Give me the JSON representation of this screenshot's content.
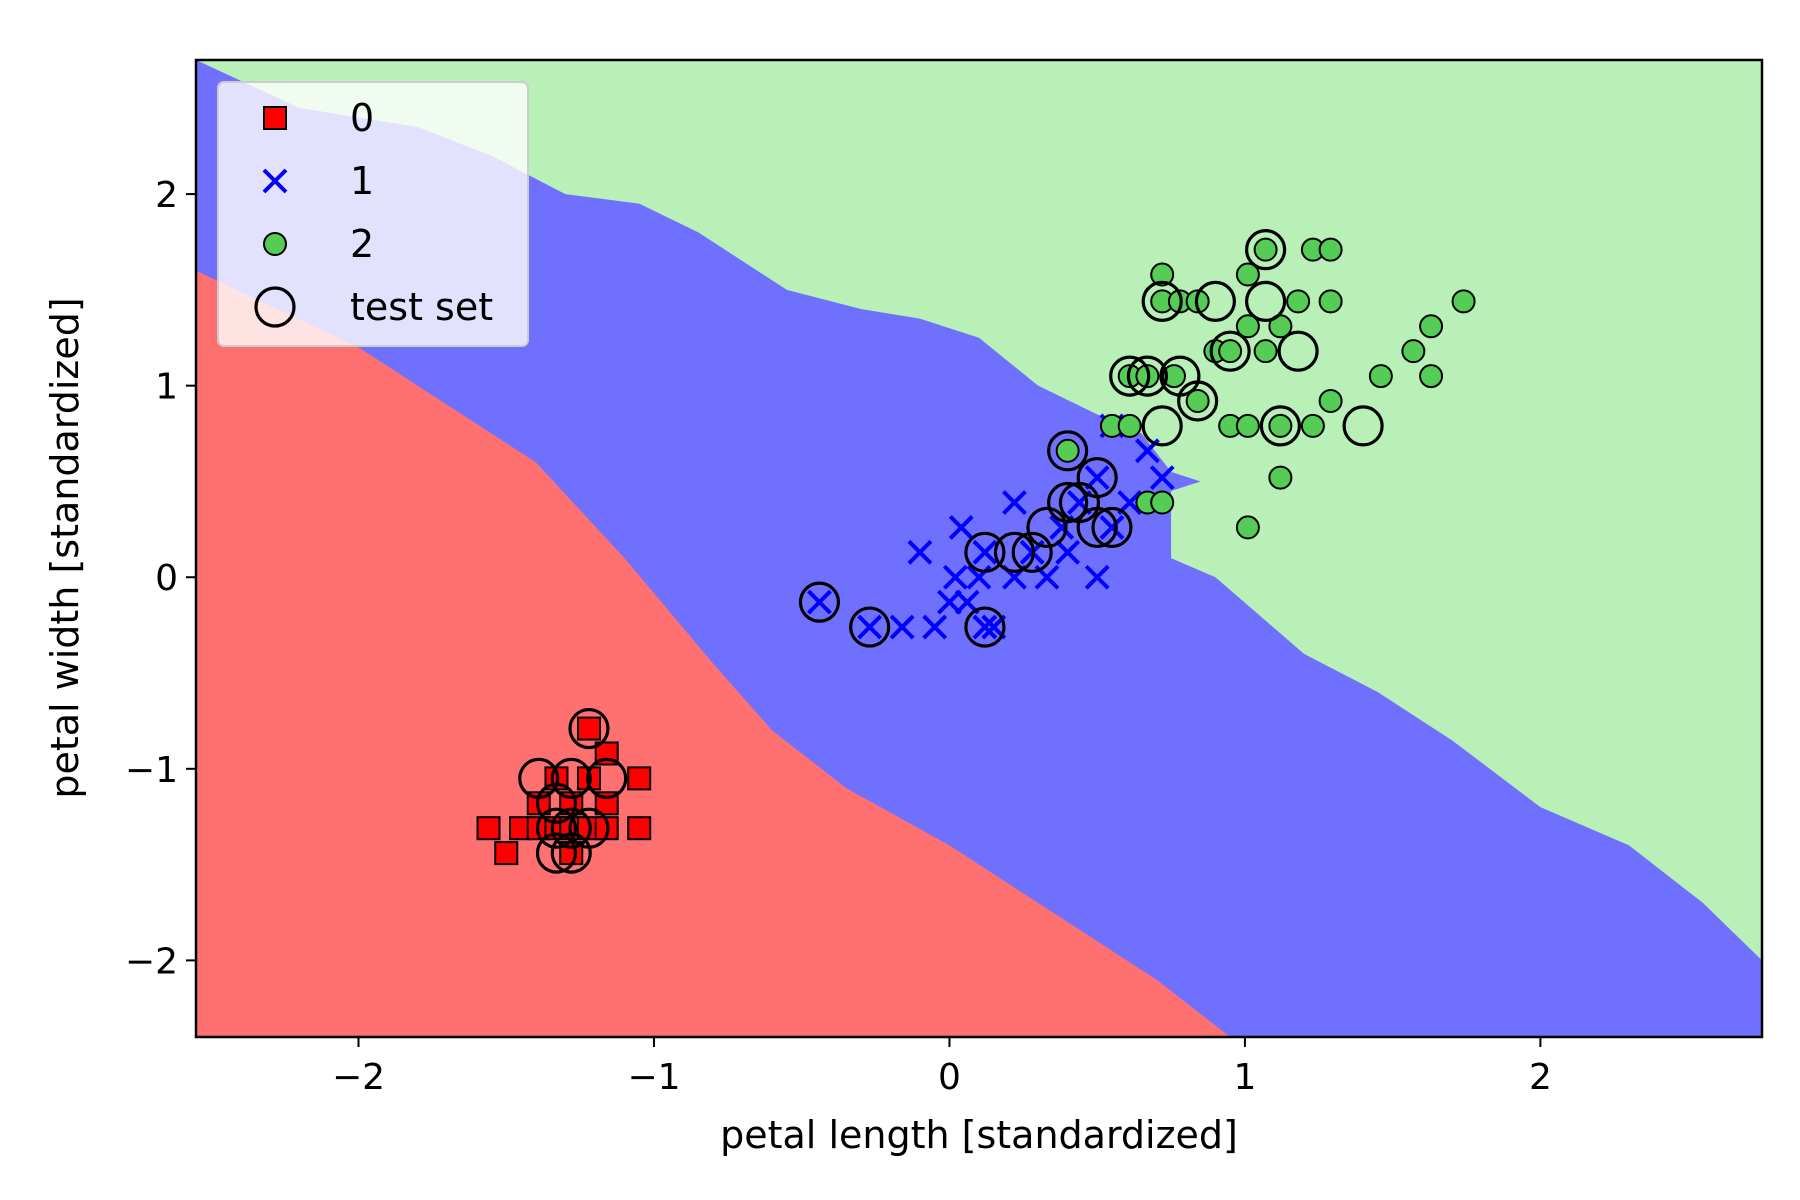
{
  "chart_data": {
    "type": "scatter",
    "title": "",
    "xlabel": "petal length [standardized]",
    "ylabel": "petal width [standardized]",
    "xlim": [
      -2.55,
      2.75
    ],
    "ylim": [
      -2.4,
      2.7
    ],
    "xticks": [
      -2,
      -1,
      0,
      1,
      2
    ],
    "yticks": [
      -2,
      -1,
      0,
      1,
      2
    ],
    "xtick_labels": [
      "−2",
      "−1",
      "0",
      "1",
      "2"
    ],
    "ytick_labels": [
      "−2",
      "−1",
      "0",
      "1",
      "2"
    ],
    "grid": false,
    "legend_position": "upper-left",
    "regions": [
      {
        "class": "0",
        "color": "#ff7070",
        "boundary_to": "1",
        "boundary": [
          [
            -2.55,
            1.6
          ],
          [
            -2.0,
            1.2
          ],
          [
            -1.7,
            0.9
          ],
          [
            -1.4,
            0.6
          ],
          [
            -1.1,
            0.1
          ],
          [
            -0.8,
            -0.45
          ],
          [
            -0.6,
            -0.8
          ],
          [
            -0.35,
            -1.1
          ],
          [
            0.0,
            -1.4
          ],
          [
            0.4,
            -1.8
          ],
          [
            0.7,
            -2.1
          ],
          [
            0.95,
            -2.4
          ]
        ]
      },
      {
        "class": "1",
        "color": "#7070ff",
        "boundary_to": "2",
        "boundary": [
          [
            -2.55,
            2.7
          ],
          [
            -2.2,
            2.45
          ],
          [
            -1.8,
            2.35
          ],
          [
            -1.55,
            2.2
          ],
          [
            -1.3,
            2.0
          ],
          [
            -1.05,
            1.95
          ],
          [
            -0.85,
            1.8
          ],
          [
            -0.55,
            1.5
          ],
          [
            -0.3,
            1.4
          ],
          [
            -0.1,
            1.35
          ],
          [
            0.1,
            1.25
          ],
          [
            0.3,
            1.0
          ],
          [
            0.5,
            0.85
          ],
          [
            0.65,
            0.75
          ],
          [
            0.75,
            0.55
          ],
          [
            0.85,
            0.5
          ],
          [
            0.75,
            0.45
          ],
          [
            0.75,
            0.25
          ],
          [
            0.75,
            0.1
          ],
          [
            0.9,
            0.0
          ],
          [
            1.05,
            -0.2
          ],
          [
            1.2,
            -0.4
          ],
          [
            1.45,
            -0.6
          ],
          [
            1.7,
            -0.85
          ],
          [
            2.0,
            -1.2
          ],
          [
            2.3,
            -1.4
          ],
          [
            2.55,
            -1.7
          ],
          [
            2.75,
            -2.0
          ]
        ]
      },
      {
        "class": "2",
        "color": "#b8f0b8"
      }
    ],
    "series": [
      {
        "name": "0",
        "marker": "square",
        "color": "#ff0000",
        "points": [
          [
            -1.56,
            -1.31
          ],
          [
            -1.5,
            -1.44
          ],
          [
            -1.45,
            -1.31
          ],
          [
            -1.39,
            -1.31
          ],
          [
            -1.39,
            -1.18
          ],
          [
            -1.33,
            -1.05
          ],
          [
            -1.33,
            -1.31
          ],
          [
            -1.28,
            -1.18
          ],
          [
            -1.28,
            -1.31
          ],
          [
            -1.22,
            -1.05
          ],
          [
            -1.22,
            -1.31
          ],
          [
            -1.22,
            -0.79
          ],
          [
            -1.16,
            -0.92
          ],
          [
            -1.16,
            -1.18
          ],
          [
            -1.16,
            -1.31
          ],
          [
            -1.05,
            -1.05
          ],
          [
            -1.05,
            -1.31
          ],
          [
            -1.28,
            -1.44
          ]
        ]
      },
      {
        "name": "1",
        "marker": "x",
        "color": "#0000ff",
        "points": [
          [
            -0.44,
            -0.13
          ],
          [
            -0.27,
            -0.26
          ],
          [
            -0.16,
            -0.26
          ],
          [
            -0.1,
            0.13
          ],
          [
            -0.05,
            -0.26
          ],
          [
            0.0,
            -0.13
          ],
          [
            0.02,
            0.0
          ],
          [
            0.04,
            0.26
          ],
          [
            0.06,
            -0.13
          ],
          [
            0.1,
            0.0
          ],
          [
            0.12,
            0.13
          ],
          [
            0.15,
            -0.26
          ],
          [
            0.22,
            0.0
          ],
          [
            0.22,
            0.39
          ],
          [
            0.28,
            0.13
          ],
          [
            0.33,
            0.0
          ],
          [
            0.38,
            0.26
          ],
          [
            0.4,
            0.13
          ],
          [
            0.44,
            0.39
          ],
          [
            0.5,
            0.0
          ],
          [
            0.55,
            0.26
          ],
          [
            0.55,
            0.79
          ],
          [
            0.61,
            0.39
          ],
          [
            0.67,
            0.66
          ],
          [
            0.72,
            0.52
          ],
          [
            0.12,
            -0.26
          ],
          [
            0.5,
            0.52
          ]
        ]
      },
      {
        "name": "2",
        "marker": "circle",
        "color": "#55cc55",
        "points": [
          [
            0.4,
            0.66
          ],
          [
            0.55,
            0.79
          ],
          [
            0.61,
            1.05
          ],
          [
            0.61,
            0.79
          ],
          [
            0.67,
            1.05
          ],
          [
            0.67,
            0.39
          ],
          [
            0.72,
            1.44
          ],
          [
            0.72,
            1.58
          ],
          [
            0.72,
            0.39
          ],
          [
            0.76,
            1.05
          ],
          [
            0.78,
            1.44
          ],
          [
            0.84,
            1.44
          ],
          [
            0.84,
            0.92
          ],
          [
            0.9,
            1.18
          ],
          [
            0.95,
            1.18
          ],
          [
            0.95,
            0.79
          ],
          [
            1.01,
            1.58
          ],
          [
            1.01,
            1.31
          ],
          [
            1.01,
            0.26
          ],
          [
            1.01,
            0.79
          ],
          [
            1.07,
            1.71
          ],
          [
            1.07,
            1.18
          ],
          [
            1.12,
            1.31
          ],
          [
            1.12,
            0.52
          ],
          [
            1.12,
            0.79
          ],
          [
            1.18,
            1.44
          ],
          [
            1.23,
            1.71
          ],
          [
            1.23,
            0.79
          ],
          [
            1.29,
            1.44
          ],
          [
            1.29,
            0.92
          ],
          [
            1.29,
            1.71
          ],
          [
            1.46,
            1.05
          ],
          [
            1.57,
            1.18
          ],
          [
            1.63,
            1.31
          ],
          [
            1.63,
            1.05
          ],
          [
            1.74,
            1.44
          ]
        ]
      },
      {
        "name": "test set",
        "marker": "open-circle",
        "color": "#000000",
        "points": [
          [
            -1.39,
            -1.05
          ],
          [
            -1.28,
            -1.05
          ],
          [
            -1.22,
            -0.79
          ],
          [
            -1.16,
            -1.05
          ],
          [
            -1.33,
            -1.18
          ],
          [
            -1.33,
            -1.31
          ],
          [
            -1.28,
            -1.31
          ],
          [
            -1.22,
            -1.31
          ],
          [
            -1.33,
            -1.44
          ],
          [
            -1.28,
            -1.44
          ],
          [
            -0.44,
            -0.13
          ],
          [
            -0.27,
            -0.26
          ],
          [
            0.12,
            0.13
          ],
          [
            0.12,
            -0.26
          ],
          [
            0.22,
            0.13
          ],
          [
            0.28,
            0.13
          ],
          [
            0.33,
            0.26
          ],
          [
            0.4,
            0.39
          ],
          [
            0.44,
            0.39
          ],
          [
            0.5,
            0.26
          ],
          [
            0.55,
            0.26
          ],
          [
            0.5,
            0.52
          ],
          [
            0.4,
            0.66
          ],
          [
            0.61,
            1.05
          ],
          [
            0.67,
            1.05
          ],
          [
            0.72,
            0.79
          ],
          [
            0.78,
            1.05
          ],
          [
            0.84,
            0.92
          ],
          [
            0.72,
            1.44
          ],
          [
            0.9,
            1.44
          ],
          [
            0.95,
            1.18
          ],
          [
            1.07,
            1.71
          ],
          [
            1.07,
            1.44
          ],
          [
            1.18,
            1.18
          ],
          [
            1.12,
            0.79
          ],
          [
            1.4,
            0.79
          ]
        ]
      }
    ]
  }
}
